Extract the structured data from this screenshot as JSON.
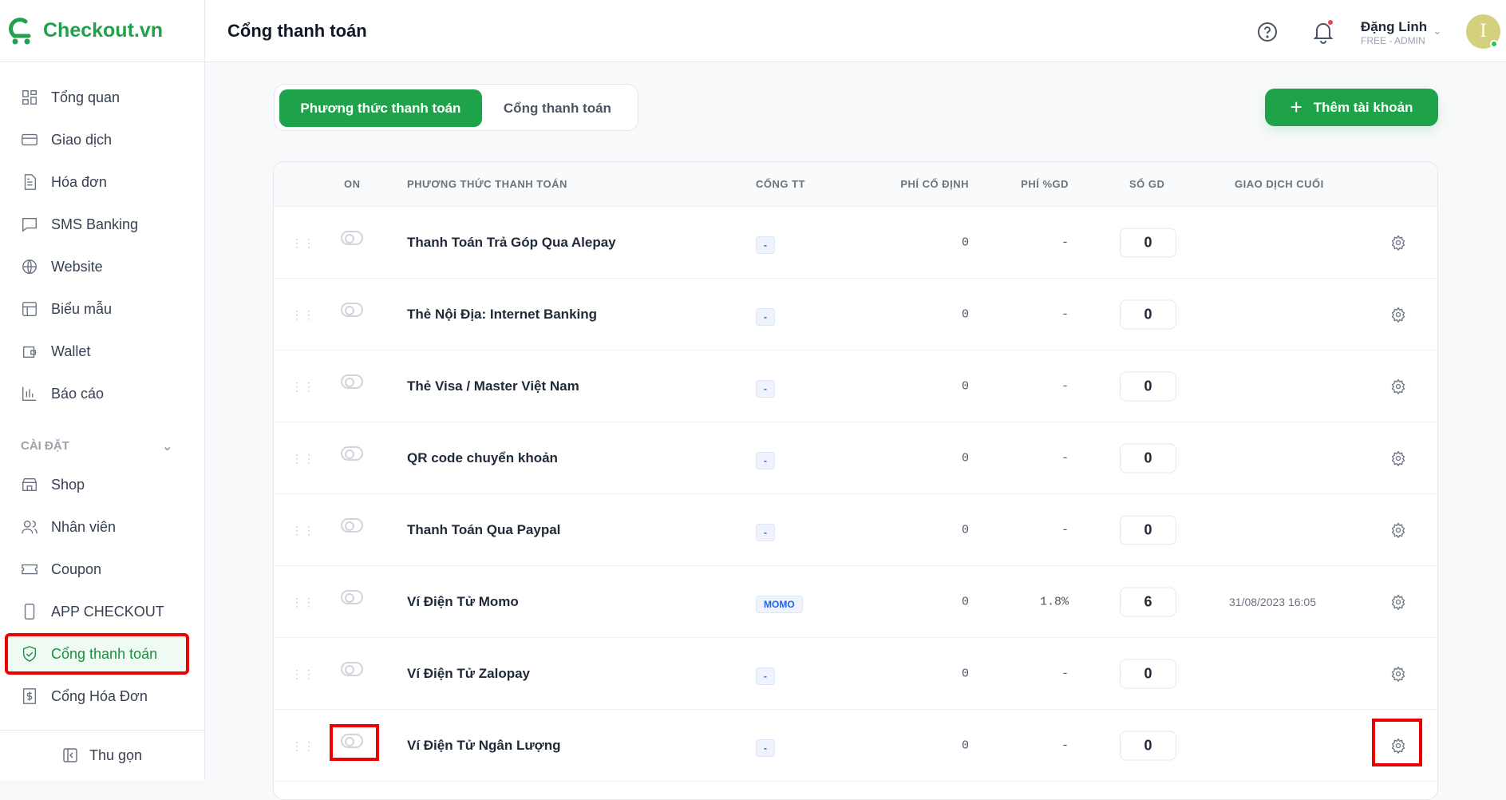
{
  "brand": {
    "name": "Checkout.vn",
    "color": "#22a04b"
  },
  "header": {
    "title": "Cổng thanh toán",
    "user_name": "Đặng Linh",
    "user_role": "FREE - ADMIN",
    "avatar_initial": "I"
  },
  "sidebar": {
    "items": [
      {
        "label": "Tổng quan",
        "icon": "grid-icon"
      },
      {
        "label": "Giao dịch",
        "icon": "credit-card-icon"
      },
      {
        "label": "Hóa đơn",
        "icon": "document-icon"
      },
      {
        "label": "SMS Banking",
        "icon": "message-icon"
      },
      {
        "label": "Website",
        "icon": "globe-icon"
      },
      {
        "label": "Biểu mẫu",
        "icon": "layout-icon"
      },
      {
        "label": "Wallet",
        "icon": "wallet-icon"
      },
      {
        "label": "Báo cáo",
        "icon": "bar-chart-icon"
      }
    ],
    "section_label": "CÀI ĐẶT",
    "settings_items": [
      {
        "label": "Shop",
        "icon": "store-icon"
      },
      {
        "label": "Nhân viên",
        "icon": "users-icon"
      },
      {
        "label": "Coupon",
        "icon": "ticket-icon"
      },
      {
        "label": "APP CHECKOUT",
        "icon": "phone-icon"
      },
      {
        "label": "Cổng thanh toán",
        "icon": "shield-check-icon",
        "active": true
      },
      {
        "label": "Cổng Hóa Đơn",
        "icon": "receipt-dollar-icon"
      }
    ],
    "collapse_label": "Thu gọn"
  },
  "tabs": [
    {
      "label": "Phương thức thanh toán",
      "active": true
    },
    {
      "label": "Cổng thanh toán",
      "active": false
    }
  ],
  "add_button": "Thêm tài khoản",
  "table": {
    "columns": [
      "ON",
      "PHƯƠNG THỨC THANH TOÁN",
      "CỔNG TT",
      "PHÍ CỐ ĐỊNH",
      "PHÍ %GD",
      "SỐ GD",
      "GIAO DỊCH CUỐI"
    ],
    "rows": [
      {
        "name": "Thanh Toán Trả Góp Qua Alepay",
        "gateway": "-",
        "fixed_fee": "0",
        "pct_fee": "-",
        "count": "0",
        "last": "",
        "on": false
      },
      {
        "name": "Thẻ Nội Địa: Internet Banking",
        "gateway": "-",
        "fixed_fee": "0",
        "pct_fee": "-",
        "count": "0",
        "last": "",
        "on": false
      },
      {
        "name": "Thẻ Visa / Master Việt Nam",
        "gateway": "-",
        "fixed_fee": "0",
        "pct_fee": "-",
        "count": "0",
        "last": "",
        "on": false
      },
      {
        "name": "QR code chuyển khoản",
        "gateway": "-",
        "fixed_fee": "0",
        "pct_fee": "-",
        "count": "0",
        "last": "",
        "on": false
      },
      {
        "name": "Thanh Toán Qua Paypal",
        "gateway": "-",
        "fixed_fee": "0",
        "pct_fee": "-",
        "count": "0",
        "last": "",
        "on": false
      },
      {
        "name": "Ví Điện Tử Momo",
        "gateway": "MOMO",
        "fixed_fee": "0",
        "pct_fee": "1.8%",
        "count": "6",
        "last": "31/08/2023 16:05",
        "on": false
      },
      {
        "name": "Ví Điện Tử Zalopay",
        "gateway": "-",
        "fixed_fee": "0",
        "pct_fee": "-",
        "count": "0",
        "last": "",
        "on": false
      },
      {
        "name": "Ví Điện Tử Ngân Lượng",
        "gateway": "-",
        "fixed_fee": "0",
        "pct_fee": "-",
        "count": "0",
        "last": "",
        "on": false
      }
    ]
  }
}
